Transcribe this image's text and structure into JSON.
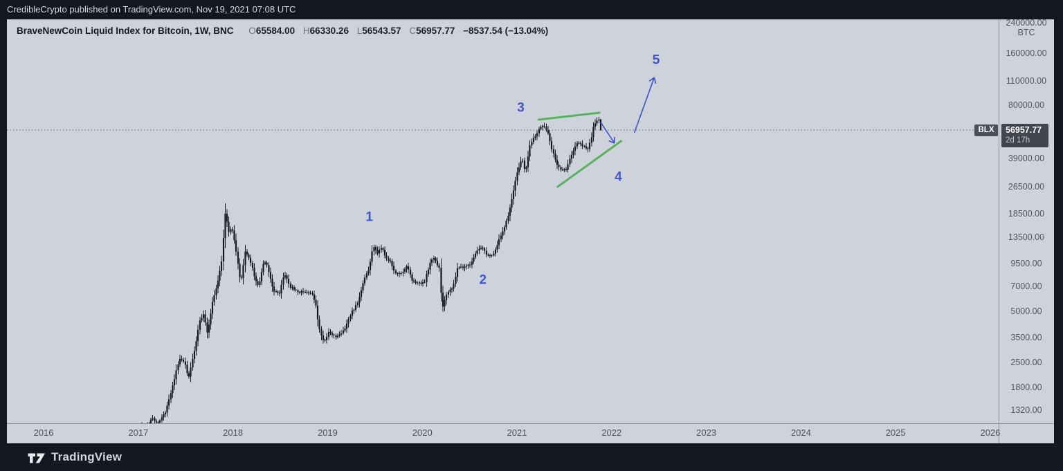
{
  "top_bar": {
    "attribution": "CredibleCrypto published on TradingView.com, Nov 19, 2021 07:08 UTC"
  },
  "chart_header": {
    "title": "BraveNewCoin Liquid Index for Bitcoin, 1W, BNC",
    "o_label": "O",
    "o_value": "65584.00",
    "h_label": "H",
    "h_value": "66330.26",
    "l_label": "L",
    "l_value": "56543.57",
    "c_label": "C",
    "c_value": "56957.77",
    "change": "−8537.54 (−13.04%)"
  },
  "price_label": {
    "symbol": "BLX",
    "price": "56957.77",
    "countdown": "2d 17h"
  },
  "price_axis": {
    "unit": "BTC"
  },
  "footer": {
    "brand": "TradingView"
  },
  "colors": {
    "accent_blue": "#4156cc",
    "trend_green": "#4caf50",
    "candle": "#17191f",
    "chart_bg": "#ced2db",
    "dark_bg": "#131722",
    "dotted_line": "#5f636c",
    "axis_text": "#50545f"
  },
  "chart_data": {
    "type": "bar",
    "symbol": "BraveNewCoin Liquid Index for Bitcoin",
    "interval": "1W",
    "exchange": "BNC",
    "scale": "log",
    "grid": false,
    "time_range": [
      2015.612,
      2026.088
    ],
    "price_range": [
      1107,
      252300
    ],
    "price_ticks": [
      240000,
      160000,
      110000,
      80000,
      39000,
      26500,
      18500,
      13500,
      9500,
      7000,
      5000,
      3500,
      2500,
      1800,
      1320
    ],
    "year_ticks": [
      2016,
      2017,
      2018,
      2019,
      2020,
      2021,
      2022,
      2023,
      2024,
      2025,
      2026
    ],
    "last_bar": {
      "open": 65584.0,
      "high": 66330.26,
      "low": 56543.57,
      "close": 56957.77,
      "change": -8537.54,
      "change_pct": -13.04
    },
    "anchors": [
      [
        2016.97,
        970
      ],
      [
        2017.02,
        1080
      ],
      [
        2017.08,
        1000
      ],
      [
        2017.15,
        1180
      ],
      [
        2017.22,
        1120
      ],
      [
        2017.3,
        1290
      ],
      [
        2017.38,
        1900
      ],
      [
        2017.44,
        2600
      ],
      [
        2017.5,
        2550
      ],
      [
        2017.54,
        2000
      ],
      [
        2017.6,
        2900
      ],
      [
        2017.66,
        4400
      ],
      [
        2017.7,
        4850
      ],
      [
        2017.74,
        3700
      ],
      [
        2017.8,
        5900
      ],
      [
        2017.85,
        7400
      ],
      [
        2017.89,
        9800
      ],
      [
        2017.93,
        19200
      ],
      [
        2017.96,
        14500
      ],
      [
        2018.0,
        15300
      ],
      [
        2018.04,
        11500
      ],
      [
        2018.09,
        7200
      ],
      [
        2018.14,
        11300
      ],
      [
        2018.19,
        9900
      ],
      [
        2018.24,
        7900
      ],
      [
        2018.28,
        7000
      ],
      [
        2018.33,
        9300
      ],
      [
        2018.36,
        9700
      ],
      [
        2018.44,
        6600
      ],
      [
        2018.5,
        6300
      ],
      [
        2018.55,
        8200
      ],
      [
        2018.62,
        6900
      ],
      [
        2018.7,
        6450
      ],
      [
        2018.78,
        6500
      ],
      [
        2018.84,
        6350
      ],
      [
        2018.88,
        5600
      ],
      [
        2018.92,
        4000
      ],
      [
        2018.97,
        3300
      ],
      [
        2019.02,
        3750
      ],
      [
        2019.1,
        3550
      ],
      [
        2019.18,
        3850
      ],
      [
        2019.26,
        4900
      ],
      [
        2019.33,
        5600
      ],
      [
        2019.4,
        7900
      ],
      [
        2019.45,
        8900
      ],
      [
        2019.49,
        12100
      ],
      [
        2019.53,
        10800
      ],
      [
        2019.58,
        11900
      ],
      [
        2019.63,
        10100
      ],
      [
        2019.68,
        9600
      ],
      [
        2019.72,
        8300
      ],
      [
        2019.8,
        8300
      ],
      [
        2019.85,
        9200
      ],
      [
        2019.9,
        7600
      ],
      [
        2019.97,
        7200
      ],
      [
        2020.03,
        7300
      ],
      [
        2020.1,
        9900
      ],
      [
        2020.14,
        10200
      ],
      [
        2020.19,
        8800
      ],
      [
        2020.22,
        5200
      ],
      [
        2020.27,
        6300
      ],
      [
        2020.33,
        6900
      ],
      [
        2020.38,
        8800
      ],
      [
        2020.45,
        9100
      ],
      [
        2020.52,
        9200
      ],
      [
        2020.58,
        11200
      ],
      [
        2020.64,
        11700
      ],
      [
        2020.7,
        10400
      ],
      [
        2020.76,
        10700
      ],
      [
        2020.82,
        13100
      ],
      [
        2020.88,
        15600
      ],
      [
        2020.93,
        19200
      ],
      [
        2020.98,
        26500
      ],
      [
        2021.02,
        33500
      ],
      [
        2021.06,
        39000
      ],
      [
        2021.1,
        32500
      ],
      [
        2021.15,
        47500
      ],
      [
        2021.2,
        52000
      ],
      [
        2021.25,
        58500
      ],
      [
        2021.29,
        60000
      ],
      [
        2021.33,
        56000
      ],
      [
        2021.38,
        43500
      ],
      [
        2021.43,
        36500
      ],
      [
        2021.48,
        33000
      ],
      [
        2021.53,
        33500
      ],
      [
        2021.58,
        40000
      ],
      [
        2021.63,
        46500
      ],
      [
        2021.67,
        48500
      ],
      [
        2021.71,
        46000
      ],
      [
        2021.75,
        43500
      ],
      [
        2021.79,
        49000
      ],
      [
        2021.82,
        61000
      ],
      [
        2021.85,
        64500
      ],
      [
        2021.87,
        65584
      ],
      [
        2021.885,
        56957.77
      ]
    ],
    "annotations": {
      "price_line": 56957.77,
      "waves": [
        {
          "label": "1",
          "t": 2019.44,
          "price": 17840
        },
        {
          "label": "2",
          "t": 2020.64,
          "price": 7660
        },
        {
          "label": "3",
          "t": 2021.04,
          "price": 77500
        },
        {
          "label": "4",
          "t": 2022.07,
          "price": 30600
        },
        {
          "label": "5",
          "t": 2022.47,
          "price": 147000
        }
      ],
      "trendlines": [
        {
          "from": [
            2021.23,
            65550
          ],
          "to": [
            2021.87,
            71930
          ]
        },
        {
          "from": [
            2021.43,
            26600
          ],
          "to": [
            2022.1,
            49150
          ]
        }
      ],
      "arrows": [
        {
          "from": [
            2021.885,
            63100
          ],
          "to": [
            2022.03,
            47800
          ]
        },
        {
          "from": [
            2022.24,
            55000
          ],
          "to": [
            2022.45,
            115500
          ]
        }
      ]
    }
  }
}
